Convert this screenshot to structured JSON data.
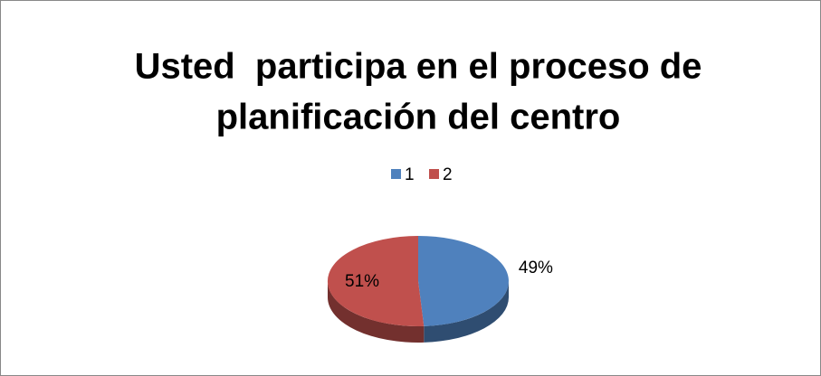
{
  "chart_data": {
    "type": "pie",
    "title": [
      "Usted  participa en el proceso de",
      "planificación del centro"
    ],
    "categories": [
      "1",
      "2"
    ],
    "values": [
      49,
      51
    ],
    "value_labels": [
      "49%",
      "51%"
    ],
    "colors": [
      "#4f81bd",
      "#c0504d"
    ],
    "legend": "top"
  }
}
